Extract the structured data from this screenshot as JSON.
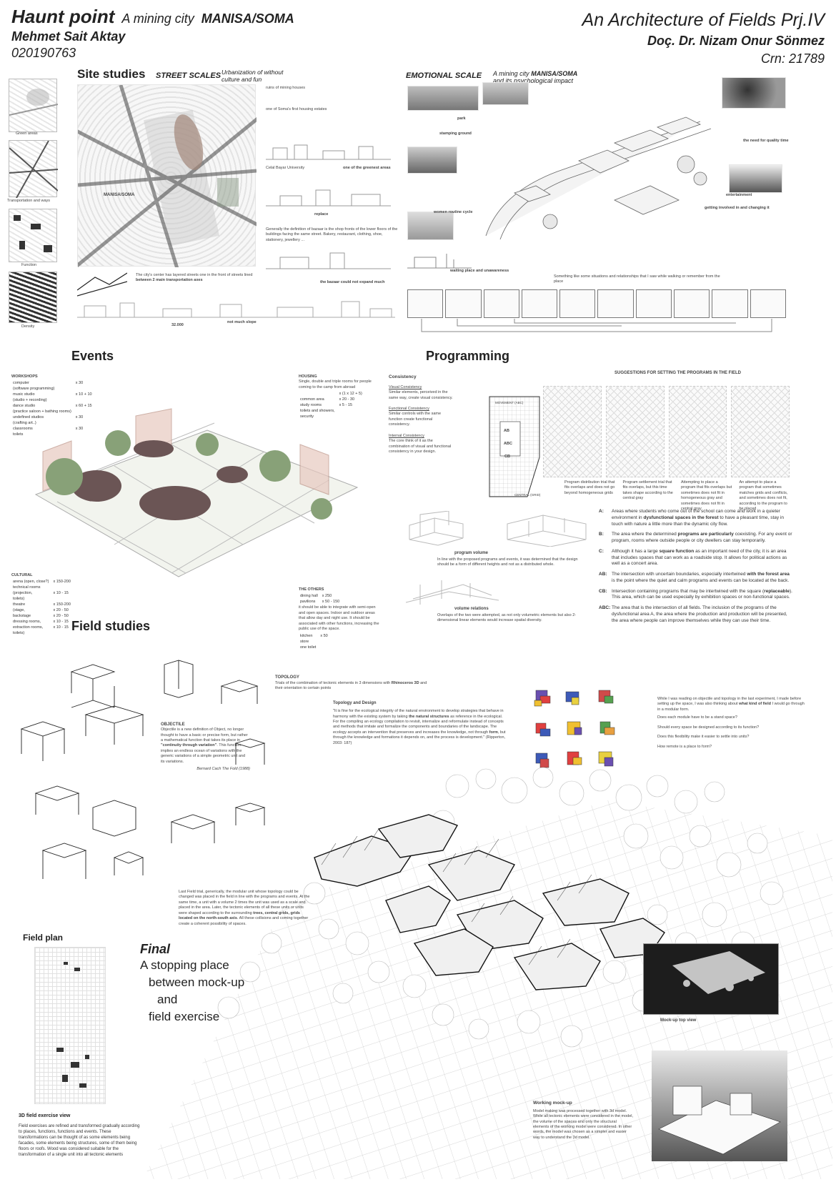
{
  "header": {
    "title": "Haunt point",
    "subtitle_prefix": "A mining city",
    "subtitle_place": "MANISA/SOMA",
    "author": "Mehmet Sait Aktay",
    "student_id": "020190763",
    "project_title": "An Architecture of Fields Prj.IV",
    "instructor": "Doç. Dr. Nizam Onur Sönmez",
    "crn": "Crn: 21789"
  },
  "site": {
    "heading": "Site studies",
    "scale_label": "STREET SCALES",
    "urbanization_note": "Urbanization of without culture and fun",
    "map_caption": "MANISA/SOMA",
    "thumb_labels": [
      "Green areas",
      "Transportation and ways",
      "Function",
      "Density"
    ],
    "notes": [
      "ruins of mining houses",
      "one of Soma's first housing estates",
      "Celal Bayar University",
      "one of the greenest areas",
      "replace",
      "Generally the definition of bazaar is the shop fronts of the lower floors of the buildings facing the same street. Bakery, restaurant, clothing, shoe, stationery, jewellery ..."
    ],
    "bottom_note_1_a": "The city's center has layered streets one in the front of streets lined",
    "bottom_note_1_b": "between 2 main transportation axes",
    "bottom_note_2": "the bazaar could not expand much",
    "bottom_note_3": "not much slope",
    "bottom_note_4": "32.000"
  },
  "emotional": {
    "heading": "EMOTIONAL SCALE",
    "sub_prefix": "A mining city",
    "sub_place": "MANISA/SOMA",
    "sub_line2": "and its psychological impact",
    "notes": [
      "park",
      "stamping ground",
      "women routine cycle",
      "the need for quality time",
      "entertainment",
      "getting involved in and changing it",
      "waiting place and unawareness"
    ],
    "bottom_note": "Something like some situations and relationships that I saw while walking or remember from the place"
  },
  "events": {
    "heading": "Events",
    "workshops_title": "WORKSHOPS",
    "workshops": [
      [
        "computer",
        "x 30"
      ],
      [
        "(software programming)",
        ""
      ],
      [
        "music studio",
        "x 10 + 10"
      ],
      [
        "(studio + recording)",
        ""
      ],
      [
        "dance studio",
        "x 60 + 15"
      ],
      [
        "(practice saloon + bathing rooms)",
        ""
      ],
      [
        "undefined studios",
        "x 30"
      ],
      [
        "(crafting art..)",
        ""
      ],
      [
        "classrooms",
        "x 30"
      ],
      [
        "toilets",
        ""
      ]
    ],
    "housing_title": "HOUSING",
    "housing_desc": "Single, double and triple rooms for people coming to the camp from abroad",
    "housing": [
      [
        "",
        "x (1 x 12 + 5)"
      ],
      [
        "common area",
        "x 20 - 30"
      ],
      [
        "study rooms",
        "x 5 - 15"
      ],
      [
        "toilets and showers,",
        ""
      ],
      [
        "security",
        ""
      ]
    ],
    "cultural_title": "CULTURAL",
    "cultural": [
      [
        "arena (open, close?)",
        "x 150-200"
      ],
      [
        "technical rooms",
        ""
      ],
      [
        "(projection,",
        "x 10 - 15"
      ],
      [
        "toilets)",
        ""
      ],
      [
        "theatre",
        "x 150-200"
      ],
      [
        "(stage,",
        "x 20 - 50"
      ],
      [
        "backstage",
        "x 20 - 50"
      ],
      [
        "dressing rooms,",
        "x 10 - 15"
      ],
      [
        "extraction rooms,",
        "x 10 - 15"
      ],
      [
        "toilets)",
        ""
      ]
    ],
    "others_title": "THE OTHERS",
    "others": [
      [
        "dining hall",
        "x 250"
      ],
      [
        "pavilions",
        "x 50 - 150"
      ]
    ],
    "others_note": "it should be able to integrate with semi-open and open spaces. Indoor and outdoor areas that allow day and night use. It should be associated with other functions, increasing the public use of the space.",
    "others_extra": [
      [
        "kitchen",
        "x 50"
      ],
      [
        "store",
        ""
      ],
      [
        "one toilet",
        ""
      ]
    ]
  },
  "programming": {
    "heading": "Programming",
    "consistency_title": "Consistency",
    "visual_title": "Visual Consistency",
    "visual_text": "Similar elements, perceived in the same way, create visual consistency.",
    "functional_title": "Functional Consistency",
    "functional_text": "Similar controls with the same function create functional consistency.",
    "internal_title": "Internal Consistency",
    "internal_text": "The core think of it as the combination of visual and functional consistency in your design.",
    "zone_labels": [
      "MOVEMENT (ABC)",
      "AB",
      "ABC",
      "CB",
      "CENTRAL (GRID)"
    ],
    "suggest_title": "SUGGESTIONS FOR SETTING THE PROGRAMS IN THE FIELD",
    "captions": [
      "Program distribution trial that fits overlaps and does not go beyond homogeneous grids",
      "Program settlement trial that fits overlaps, but this time takes shape according to the central gray",
      "Attempting to place a program that fits overlaps but sometimes does not fit in homogeneous gray and sometimes does not fit in central gray",
      "An attempt to place a program that sometimes matches grids and conflicts, and sometimes does not fit, according to the program to be placed"
    ],
    "volume_title": "program volume",
    "volume_text": "In line with the proposed programs and events, it was determined that the design should be a form of different heights and not as a distributed whole.",
    "relations_title": "volume relations",
    "relations_text": "Overlaps of the two were attempted, as not only volumetric elements but also 2-dimensional linear elements would increase spatial diversity.",
    "legend": [
      {
        "k": "A:",
        "pre": "Areas where students who come out of the school can come and work in a quieter environment in ",
        "b": "dysfunctional spaces in the forest",
        "post": " to have a pleasant time, stay in touch with nature a little more than the dynamic city flow."
      },
      {
        "k": "B:",
        "pre": "The area where the determined ",
        "b": "programs are particularly",
        "post": " coexisting. For any event or program, rooms where outside people or city dwellers can stay temporarily."
      },
      {
        "k": "C:",
        "pre": "Although it has a large ",
        "b": "square function",
        "post": " as an important need of the city, it is an area that includes spaces that can work as a roadside stop. It allows for political actions as well as a concert area."
      },
      {
        "k": "AB:",
        "pre": "The intersection with uncertain boundaries, especially intertwined ",
        "b": "with the forest area",
        "post": " is the point where the quiet and calm programs and events can be located at the back."
      },
      {
        "k": "CB:",
        "pre": "Intersection containing programs that may be intertwined with the square (",
        "b": "replaceable",
        "post": "). This area, which can be used especially by exhibition spaces or non-functional spaces."
      },
      {
        "k": "ABC:",
        "pre": "The area that is the intersection of all fields. The inclusion of the programs of the dysfunctional area A, the area where the production and production will be presented, the area where people can improve themselves while they can use their time.",
        "b": "",
        "post": ""
      }
    ]
  },
  "field": {
    "heading": "Field studies",
    "topology_title": "TOPOLOGY",
    "topology_text_a": "Trials of the combination of tectonic elements in 3 dimensions with",
    "topology_text_b": "Rhinoceros 3D",
    "topology_text_c": "and their orientation to certain points",
    "objectile_title": "OBJECTILE",
    "objectile_text_a": "Objectile is a new definition of Object, no longer thought to have a basic or precise form, but rather a mathematical function that takes its place in",
    "objectile_text_b": "\"continuity through variation\"",
    "objectile_text_c": ". This function implies an endless ocean of variations with the generic variations of a simple geometric unit and its variations.",
    "objectile_cite": "Bernard Cach The Fold (1988)",
    "topo_design_title": "Topology and Design",
    "topo_design_text_a": "\"It is fine for the ecological integrity of the natural environment to develop strategies that behave in harmony with the existing system by taking",
    "topo_design_text_b": "the natural structures",
    "topo_design_text_c": "as reference in the ecological. For the compiling an ecology compilation to revisit, internalize and reformulate instead of concepts and methods that imitate and formalize the components and boundaries of the landscape. The ecology accepts an intervention that preserves and increases the knowledge, not through",
    "topo_design_text_d": "form",
    "topo_design_text_e": ", but through the knowledge and formations it depends on, and the process is development.\" (Ripperton, 2003: 187)",
    "questions_intro_a": "While I was reading on objectile and topology in the last experiment, I made before setting up the space, I was also thinking about",
    "questions_intro_b": "what kind of field",
    "questions_intro_c": "I would go through in a modular form.",
    "questions": [
      "Does each module have to be a stand space?",
      "Should every space be designed according to its function?",
      "Does this flexibility make it easier to settle into units?",
      "How remote is a place to form?"
    ],
    "last_trial_a": "Last Field trial, generically, the modular unit whose topology could be changed was placed in the field in line with the programs and events. At the same time, a unit with a volume 2 times the unit was used as a scale and placed in the area. Later, the tectonic elements of all these units or units were shaped according to the surrounding",
    "last_trial_b": "trees, central grids, grids located on the north-south axis",
    "last_trial_c": ". All these collisions and coming together create a coherent possibility of spaces.",
    "plan_heading": "Field plan",
    "view_heading": "3D field exercise view",
    "view_text": "Field exercises are refined and transformed gradually according to places, functions, functions and events. These transformations can be thought of as some elements being facades, some elements being structures, some of them being floors or roofs. Wood was considered suitable for the transformation of a single unit into all tectonic elements",
    "final_title": "Final",
    "final_lines": [
      "A stopping place",
      "between mock-up",
      "and",
      "field exercise"
    ],
    "mockup_top": "Mock-up top view",
    "working_title": "Working mock-up",
    "working_text": "Model making was processed together with 3d model. While all tectonic elements were considered in the model, the volume of the spaces and only the structural elements of the working model were considered. In other words, the model was chosen as a simpler and easier way to understand the 3d model."
  }
}
